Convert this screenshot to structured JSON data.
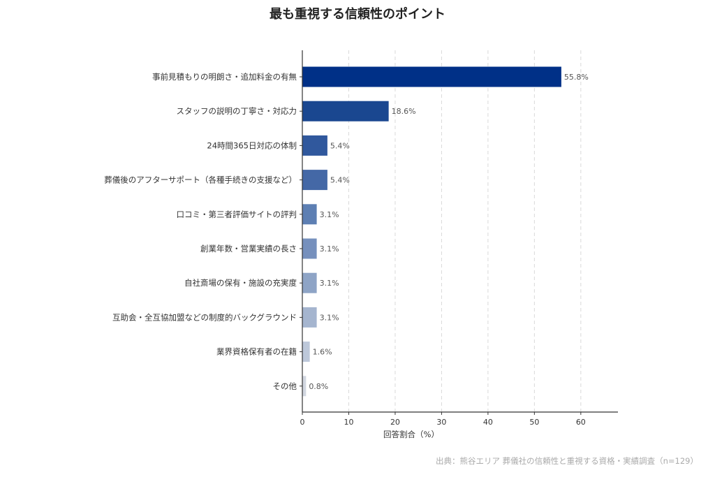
{
  "chart_data": {
    "type": "bar",
    "orientation": "horizontal",
    "title": "最も重視する信頼性のポイント",
    "xlabel": "回答割合（%）",
    "ylabel": "",
    "xlim": [
      0,
      68
    ],
    "xticks": [
      0,
      10,
      20,
      30,
      40,
      50,
      60
    ],
    "grid": "x-dashed",
    "categories": [
      "事前見積もりの明朗さ・追加料金の有無",
      "スタッフの説明の丁寧さ・対応力",
      "24時間365日対応の体制",
      "葬儀後のアフターサポート（各種手続きの支援など）",
      "口コミ・第三者評価サイトの評判",
      "創業年数・営業実績の長さ",
      "自社斎場の保有・施設の充実度",
      "互助会・全互協加盟などの制度的バックグラウンド",
      "業界資格保有者の在籍",
      "その他"
    ],
    "values": [
      55.8,
      18.6,
      5.4,
      5.4,
      3.1,
      3.1,
      3.1,
      3.1,
      1.6,
      0.8
    ],
    "value_labels": [
      "55.8%",
      "18.6%",
      "5.4%",
      "5.4%",
      "3.1%",
      "3.1%",
      "3.1%",
      "3.1%",
      "1.6%",
      "0.8%"
    ],
    "colors": [
      "#003087",
      "#1a4790",
      "#30589d",
      "#4468a6",
      "#5d7fb3",
      "#7690bd",
      "#8ea4c6",
      "#a5b5cf",
      "#bdc8da",
      "#d2d7e0"
    ]
  },
  "source_note": "出典：熊谷エリア 葬儀社の信頼性と重視する資格・実績調査（n=129）"
}
